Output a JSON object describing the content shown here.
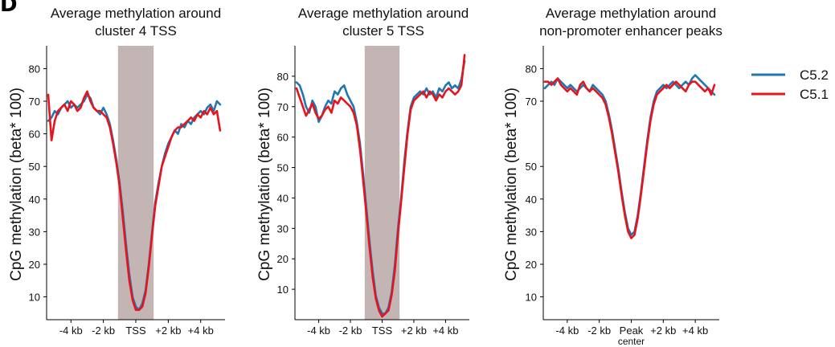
{
  "panel_letter": "D",
  "legend": {
    "entries": [
      {
        "label": "C5.2",
        "color": "#1f77b4"
      },
      {
        "label": "C5.1",
        "color": "#e8141c"
      }
    ]
  },
  "chart_data": [
    {
      "type": "line",
      "title_line1": "Average methylation around",
      "title_line2": "cluster 4 TSS",
      "ylabel": "CpG methylation (beta* 100)",
      "xlabel": "",
      "xlim": [
        -5.5,
        5.5
      ],
      "ylim": [
        3,
        87
      ],
      "yticks": [
        10,
        20,
        30,
        40,
        50,
        60,
        70,
        80
      ],
      "xticks": [
        {
          "x": -4,
          "label": "-4 kb"
        },
        {
          "x": -2,
          "label": "-2 kb"
        },
        {
          "x": 0,
          "label": "TSS",
          "label2": ""
        },
        {
          "x": 2,
          "label": "+2 kb"
        },
        {
          "x": 4,
          "label": "+4 kb"
        }
      ],
      "shade": {
        "x0": -1.1,
        "x1": 1.1,
        "color": "#c4b5b5"
      },
      "series": [
        {
          "name": "C5.2",
          "color": "#1f77b4",
          "x": [
            -5.4,
            -5.2,
            -5.0,
            -4.8,
            -4.6,
            -4.4,
            -4.2,
            -4.0,
            -3.8,
            -3.6,
            -3.4,
            -3.2,
            -3.0,
            -2.8,
            -2.6,
            -2.4,
            -2.2,
            -2.0,
            -1.8,
            -1.6,
            -1.4,
            -1.2,
            -1.0,
            -0.8,
            -0.6,
            -0.4,
            -0.2,
            0.0,
            0.2,
            0.4,
            0.6,
            0.8,
            1.0,
            1.2,
            1.4,
            1.6,
            1.8,
            2.0,
            2.2,
            2.4,
            2.6,
            2.8,
            3.0,
            3.2,
            3.4,
            3.6,
            3.8,
            4.0,
            4.2,
            4.4,
            4.6,
            4.8,
            5.0,
            5.2
          ],
          "values": [
            64,
            65,
            67,
            66,
            68,
            69,
            70,
            68,
            69,
            68,
            69,
            70,
            72,
            71,
            68,
            67,
            66,
            68,
            66,
            63,
            58,
            52,
            45,
            36,
            26,
            17,
            10,
            7,
            6,
            8,
            12,
            20,
            30,
            39,
            45,
            50,
            54,
            57,
            59,
            61,
            60,
            63,
            62,
            64,
            63,
            65,
            66,
            67,
            66,
            68,
            69,
            67,
            70,
            69
          ]
        },
        {
          "name": "C5.1",
          "color": "#e8141c",
          "x": [
            -5.4,
            -5.2,
            -5.0,
            -4.8,
            -4.6,
            -4.4,
            -4.2,
            -4.0,
            -3.8,
            -3.6,
            -3.4,
            -3.2,
            -3.0,
            -2.8,
            -2.6,
            -2.4,
            -2.2,
            -2.0,
            -1.8,
            -1.6,
            -1.4,
            -1.2,
            -1.0,
            -0.8,
            -0.6,
            -0.4,
            -0.2,
            0.0,
            0.2,
            0.4,
            0.6,
            0.8,
            1.0,
            1.2,
            1.4,
            1.6,
            1.8,
            2.0,
            2.2,
            2.4,
            2.6,
            2.8,
            3.0,
            3.2,
            3.4,
            3.6,
            3.8,
            4.0,
            4.2,
            4.4,
            4.6,
            4.8,
            5.0,
            5.2
          ],
          "values": [
            72,
            58,
            64,
            67,
            68,
            69,
            67,
            70,
            69,
            67,
            68,
            71,
            73,
            70,
            68,
            67,
            67,
            66,
            65,
            62,
            57,
            51,
            44,
            34,
            24,
            15,
            9,
            6,
            6,
            7,
            11,
            19,
            29,
            38,
            44,
            50,
            53,
            56,
            59,
            61,
            62,
            62,
            63,
            64,
            65,
            64,
            66,
            65,
            67,
            66,
            68,
            66,
            67,
            61
          ]
        }
      ]
    },
    {
      "type": "line",
      "title_line1": "Average methylation around",
      "title_line2": "cluster 5 TSS",
      "ylabel": "CpG methylation (beta* 100)",
      "xlabel": "",
      "xlim": [
        -5.5,
        5.5
      ],
      "ylim": [
        0,
        90
      ],
      "yticks": [
        10,
        20,
        30,
        40,
        50,
        60,
        70,
        80
      ],
      "xticks": [
        {
          "x": -4,
          "label": "-4 kb"
        },
        {
          "x": -2,
          "label": "-2 kb"
        },
        {
          "x": 0,
          "label": "TSS",
          "label2": ""
        },
        {
          "x": 2,
          "label": "+2 kb"
        },
        {
          "x": 4,
          "label": "+4 kb"
        }
      ],
      "shade": {
        "x0": -1.1,
        "x1": 1.1,
        "color": "#c4b5b5"
      },
      "series": [
        {
          "name": "C5.2",
          "color": "#1f77b4",
          "x": [
            -5.4,
            -5.2,
            -5.0,
            -4.8,
            -4.6,
            -4.4,
            -4.2,
            -4.0,
            -3.8,
            -3.6,
            -3.4,
            -3.2,
            -3.0,
            -2.8,
            -2.6,
            -2.4,
            -2.2,
            -2.0,
            -1.8,
            -1.6,
            -1.4,
            -1.2,
            -1.0,
            -0.8,
            -0.6,
            -0.4,
            -0.2,
            0.0,
            0.2,
            0.4,
            0.6,
            0.8,
            1.0,
            1.2,
            1.4,
            1.6,
            1.8,
            2.0,
            2.2,
            2.4,
            2.6,
            2.8,
            3.0,
            3.2,
            3.4,
            3.6,
            3.8,
            4.0,
            4.2,
            4.4,
            4.6,
            4.8,
            5.0,
            5.2
          ],
          "values": [
            78,
            77,
            74,
            70,
            68,
            72,
            70,
            65,
            67,
            70,
            72,
            71,
            75,
            74,
            76,
            77,
            74,
            72,
            70,
            65,
            58,
            48,
            37,
            26,
            16,
            8,
            4,
            2,
            2,
            4,
            9,
            18,
            30,
            40,
            52,
            62,
            70,
            73,
            74,
            75,
            74,
            76,
            74,
            75,
            73,
            76,
            75,
            77,
            78,
            76,
            77,
            76,
            79,
            85
          ]
        },
        {
          "name": "C5.1",
          "color": "#e8141c",
          "x": [
            -5.4,
            -5.2,
            -5.0,
            -4.8,
            -4.6,
            -4.4,
            -4.2,
            -4.0,
            -3.8,
            -3.6,
            -3.4,
            -3.2,
            -3.0,
            -2.8,
            -2.6,
            -2.4,
            -2.2,
            -2.0,
            -1.8,
            -1.6,
            -1.4,
            -1.2,
            -1.0,
            -0.8,
            -0.6,
            -0.4,
            -0.2,
            0.0,
            0.2,
            0.4,
            0.6,
            0.8,
            1.0,
            1.2,
            1.4,
            1.6,
            1.8,
            2.0,
            2.2,
            2.4,
            2.6,
            2.8,
            3.0,
            3.2,
            3.4,
            3.6,
            3.8,
            4.0,
            4.2,
            4.4,
            4.6,
            4.8,
            5.0,
            5.2
          ],
          "values": [
            76,
            73,
            70,
            67,
            69,
            71,
            68,
            66,
            67,
            69,
            70,
            68,
            72,
            71,
            73,
            72,
            71,
            70,
            68,
            64,
            56,
            46,
            35,
            24,
            14,
            7,
            3,
            1,
            2,
            3,
            8,
            16,
            28,
            39,
            50,
            61,
            69,
            72,
            73,
            74,
            75,
            73,
            75,
            74,
            72,
            74,
            73,
            75,
            76,
            75,
            74,
            75,
            77,
            87
          ]
        }
      ]
    },
    {
      "type": "line",
      "title_line1": "Average methylation around",
      "title_line2": "non-promoter enhancer peaks",
      "ylabel": "CpG methylation (beta* 100)",
      "xlabel": "",
      "xlim": [
        -5.5,
        5.5
      ],
      "ylim": [
        3,
        87
      ],
      "yticks": [
        10,
        20,
        30,
        40,
        50,
        70,
        80
      ],
      "xticks": [
        {
          "x": -4,
          "label": "-4 kb"
        },
        {
          "x": -2,
          "label": "-2 kb"
        },
        {
          "x": 0,
          "label": "Peak",
          "label2": "center"
        },
        {
          "x": 2,
          "label": "+2 kb"
        },
        {
          "x": 4,
          "label": "+4 kb"
        }
      ],
      "shade": null,
      "series": [
        {
          "name": "C5.2",
          "color": "#1f77b4",
          "x": [
            -5.4,
            -5.2,
            -5.0,
            -4.8,
            -4.6,
            -4.4,
            -4.2,
            -4.0,
            -3.8,
            -3.6,
            -3.4,
            -3.2,
            -3.0,
            -2.8,
            -2.6,
            -2.4,
            -2.2,
            -2.0,
            -1.8,
            -1.6,
            -1.4,
            -1.2,
            -1.0,
            -0.8,
            -0.6,
            -0.4,
            -0.2,
            0.0,
            0.2,
            0.4,
            0.6,
            0.8,
            1.0,
            1.2,
            1.4,
            1.6,
            1.8,
            2.0,
            2.2,
            2.4,
            2.6,
            2.8,
            3.0,
            3.2,
            3.4,
            3.6,
            3.8,
            4.0,
            4.2,
            4.4,
            4.6,
            4.8,
            5.0,
            5.2
          ],
          "values": [
            74,
            75,
            76,
            75,
            77,
            76,
            75,
            74,
            75,
            74,
            73,
            74,
            75,
            74,
            73,
            75,
            74,
            73,
            72,
            70,
            66,
            61,
            55,
            49,
            42,
            36,
            31,
            29,
            30,
            35,
            42,
            50,
            58,
            65,
            70,
            73,
            74,
            75,
            74,
            75,
            76,
            75,
            74,
            75,
            76,
            75,
            77,
            78,
            77,
            76,
            75,
            74,
            73,
            72
          ]
        },
        {
          "name": "C5.1",
          "color": "#e8141c",
          "x": [
            -5.4,
            -5.2,
            -5.0,
            -4.8,
            -4.6,
            -4.4,
            -4.2,
            -4.0,
            -3.8,
            -3.6,
            -3.4,
            -3.2,
            -3.0,
            -2.8,
            -2.6,
            -2.4,
            -2.2,
            -2.0,
            -1.8,
            -1.6,
            -1.4,
            -1.2,
            -1.0,
            -0.8,
            -0.6,
            -0.4,
            -0.2,
            0.0,
            0.2,
            0.4,
            0.6,
            0.8,
            1.0,
            1.2,
            1.4,
            1.6,
            1.8,
            2.0,
            2.2,
            2.4,
            2.6,
            2.8,
            3.0,
            3.2,
            3.4,
            3.6,
            3.8,
            4.0,
            4.2,
            4.4,
            4.6,
            4.8,
            5.0,
            5.2
          ],
          "values": [
            76,
            76,
            75,
            76,
            77,
            75,
            74,
            73,
            74,
            73,
            72,
            75,
            76,
            74,
            73,
            74,
            73,
            72,
            71,
            69,
            65,
            60,
            54,
            48,
            41,
            35,
            30,
            28,
            29,
            34,
            41,
            49,
            57,
            64,
            69,
            72,
            73,
            74,
            75,
            74,
            75,
            76,
            75,
            74,
            73,
            75,
            76,
            76,
            75,
            74,
            73,
            74,
            72,
            75
          ]
        }
      ]
    }
  ]
}
